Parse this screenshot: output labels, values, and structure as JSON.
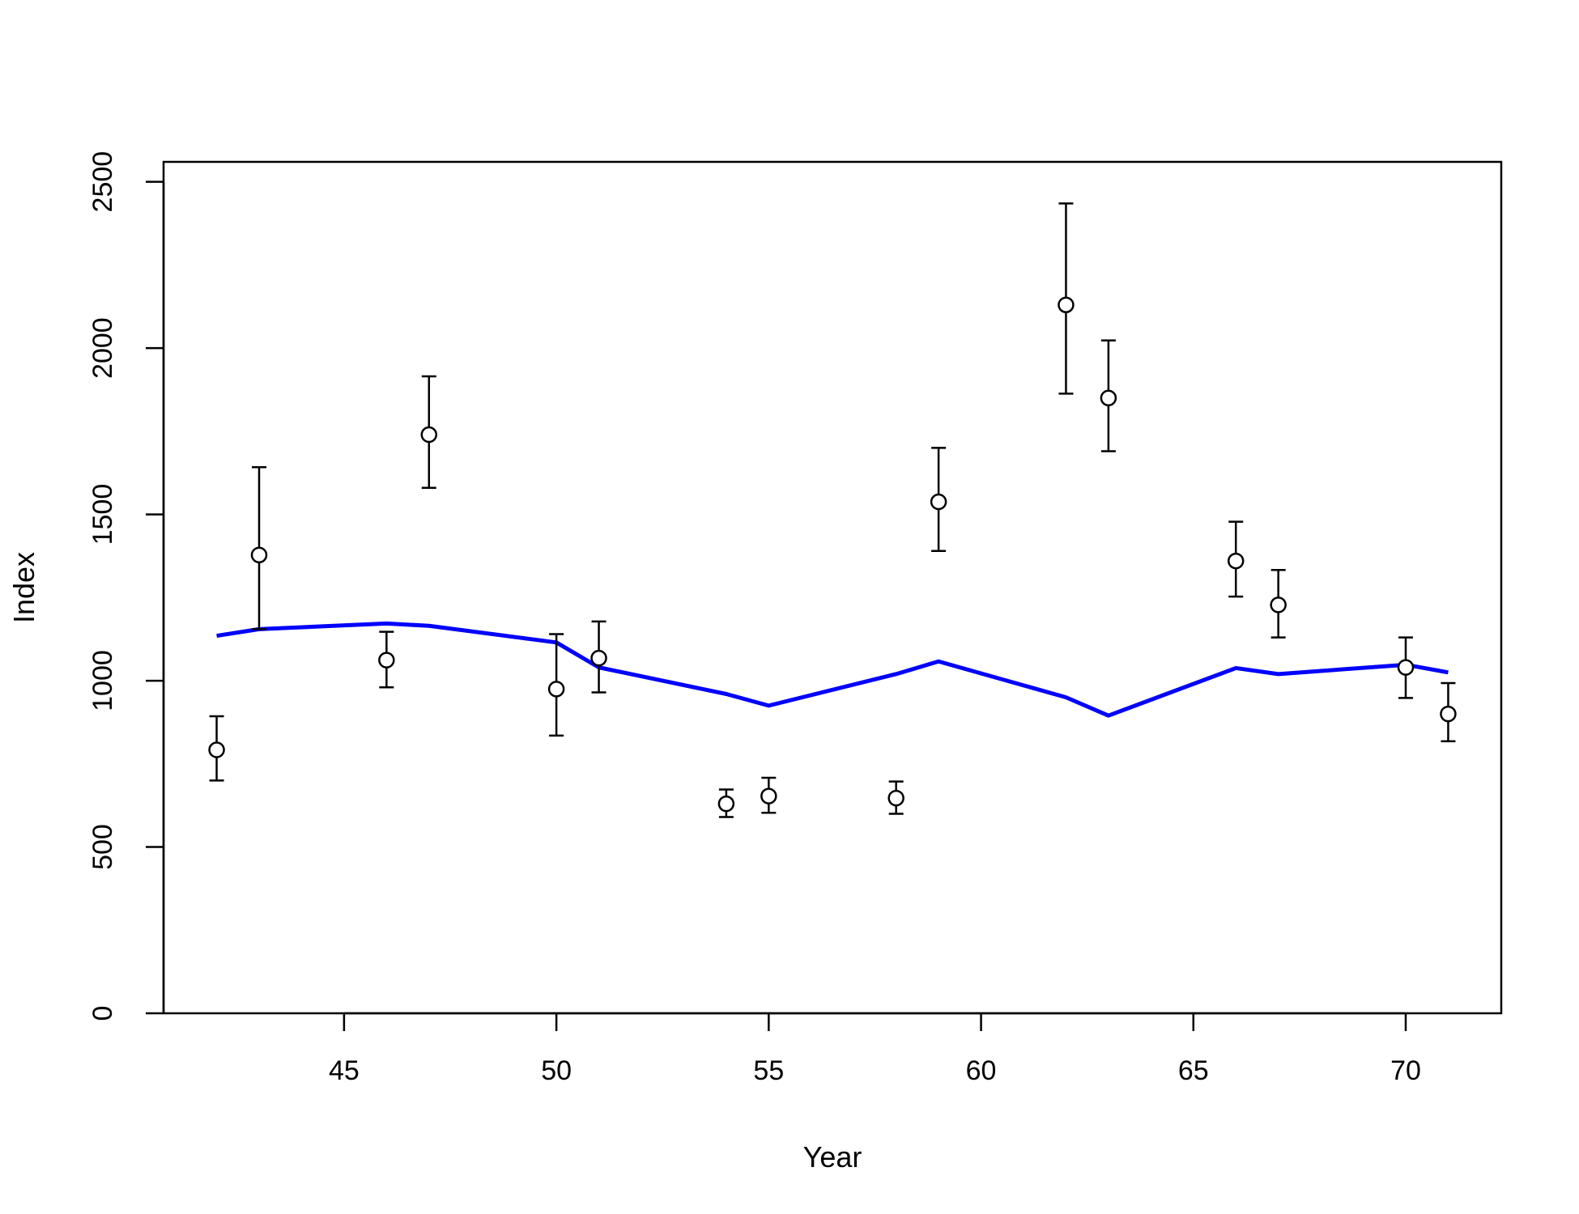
{
  "chart_data": {
    "type": "scatter",
    "title": "",
    "xlabel": "Year",
    "ylabel": "Index",
    "xlim": [
      40.75,
      72.25
    ],
    "ylim": [
      0,
      2560
    ],
    "x_ticks": [
      45,
      50,
      55,
      60,
      65,
      70
    ],
    "y_ticks": [
      0,
      500,
      1000,
      1500,
      2000,
      2500
    ],
    "grid": false,
    "legend": "none",
    "series": [
      {
        "kind": "points-with-error-bars",
        "color": "#000000",
        "points": [
          {
            "x": 42,
            "y": 792,
            "lower": 700,
            "upper": 893
          },
          {
            "x": 43,
            "y": 1378,
            "lower": 1155,
            "upper": 1642
          },
          {
            "x": 46,
            "y": 1062,
            "lower": 980,
            "upper": 1147
          },
          {
            "x": 47,
            "y": 1740,
            "lower": 1580,
            "upper": 1915
          },
          {
            "x": 50,
            "y": 975,
            "lower": 835,
            "upper": 1140
          },
          {
            "x": 51,
            "y": 1068,
            "lower": 965,
            "upper": 1178
          },
          {
            "x": 54,
            "y": 630,
            "lower": 590,
            "upper": 673
          },
          {
            "x": 55,
            "y": 653,
            "lower": 603,
            "upper": 708
          },
          {
            "x": 58,
            "y": 647,
            "lower": 600,
            "upper": 697
          },
          {
            "x": 59,
            "y": 1538,
            "lower": 1390,
            "upper": 1700
          },
          {
            "x": 62,
            "y": 2130,
            "lower": 1863,
            "upper": 2435
          },
          {
            "x": 63,
            "y": 1850,
            "lower": 1690,
            "upper": 2023
          },
          {
            "x": 66,
            "y": 1360,
            "lower": 1253,
            "upper": 1478
          },
          {
            "x": 67,
            "y": 1228,
            "lower": 1130,
            "upper": 1333
          },
          {
            "x": 70,
            "y": 1040,
            "lower": 948,
            "upper": 1130
          },
          {
            "x": 71,
            "y": 900,
            "lower": 818,
            "upper": 993
          }
        ]
      },
      {
        "kind": "line",
        "color": "#0000FF",
        "x": [
          42,
          43,
          46,
          47,
          50,
          51,
          54,
          55,
          58,
          59,
          62,
          63,
          66,
          67,
          70,
          71
        ],
        "y": [
          1135,
          1155,
          1172,
          1165,
          1115,
          1040,
          960,
          925,
          1020,
          1058,
          950,
          895,
          1038,
          1020,
          1048,
          1025
        ]
      }
    ]
  }
}
